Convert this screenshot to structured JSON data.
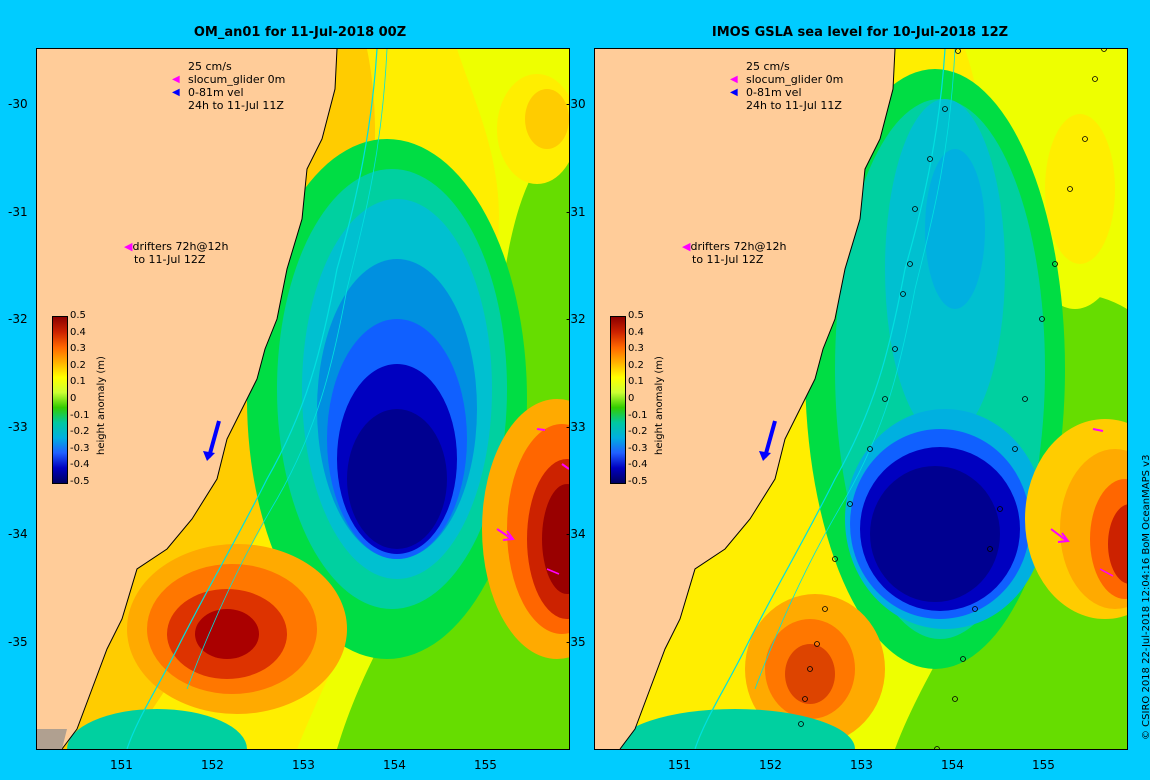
{
  "panels": [
    {
      "title": "OM_an01 for 11-Jul-2018 00Z"
    },
    {
      "title": "IMOS GSLA sea level  for 10-Jul-2018 12Z"
    }
  ],
  "legend": {
    "scale": "25 cm/s",
    "glider": "slocum_glider 0m",
    "vel": "0-81m vel",
    "period": "24h to 11-Jul 11Z",
    "drifters_line1": "drifters 72h@12h",
    "drifters_line2": "to 11-Jul 12Z",
    "glider_color": "#ff00ff",
    "vel_color": "#0000ff"
  },
  "colorbar": {
    "title": "height anomaly (m)",
    "ticks": [
      "0.5",
      "0.4",
      "0.3",
      "0.2",
      "0.1",
      "0",
      "-0.1",
      "-0.2",
      "-0.3",
      "-0.4",
      "-0.5"
    ]
  },
  "axes": {
    "lat_ticks": [
      "-30",
      "-31",
      "-32",
      "-33",
      "-34",
      "-35"
    ],
    "lon_ticks": [
      "151",
      "152",
      "153",
      "154",
      "155"
    ]
  },
  "credit": "© CSIRO 2018   22-Jul-2018 12:04:16 BoM OceanMAPS v3",
  "colors": {
    "background": "#00ccff",
    "land": "#ffcc99"
  }
}
